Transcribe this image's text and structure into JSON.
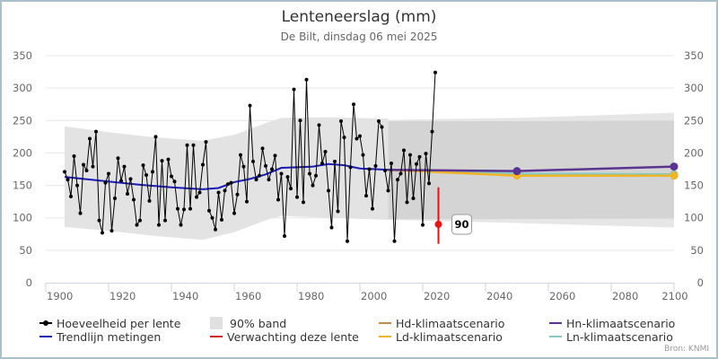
{
  "header": {
    "title": "Lenteneerslag (mm)",
    "subtitle": "De Bilt, dinsdag 06 mei 2025"
  },
  "source": "Bron: KNMI",
  "colors": {
    "observations": "#000000",
    "trend": "#1a1ab8",
    "band_hist": "#e3e3e3",
    "band_scen_outer": "#e6e6e6",
    "band_scen_inner": "#d4d4d4",
    "forecast": "#ee1111",
    "hd": "#d98f2a",
    "hn": "#5b3391",
    "ld": "#f0b429",
    "ln": "#88c9c0"
  },
  "legend": [
    {
      "label": "Hoeveelheid per lente",
      "symbol": "dot-line",
      "color": "#000000"
    },
    {
      "label": "90% band",
      "symbol": "box",
      "color": "#e3e3e3"
    },
    {
      "label": "Hd-klimaatscenario",
      "symbol": "line",
      "color": "#d98f2a"
    },
    {
      "label": "Hn-klimaatscenario",
      "symbol": "line",
      "color": "#5b3391"
    },
    {
      "label": "Trendlijn metingen",
      "symbol": "line",
      "color": "#1a1ab8"
    },
    {
      "label": "Verwachting deze lente",
      "symbol": "line",
      "color": "#ee1111"
    },
    {
      "label": "Ld-klimaatscenario",
      "symbol": "line",
      "color": "#f0b429"
    },
    {
      "label": "Ln-klimaatscenario",
      "symbol": "line",
      "color": "#88c9c0"
    }
  ],
  "chart_data": {
    "type": "line",
    "title": "Lenteneerslag (mm)",
    "subtitle": "De Bilt, dinsdag 06 mei 2025",
    "xlabel": "",
    "ylabel": "",
    "xlim": [
      1900,
      2100
    ],
    "ylim": [
      0,
      350
    ],
    "x_ticks": [
      "1900",
      "1920",
      "1940",
      "1960",
      "1980",
      "2000",
      "2020",
      "2040",
      "2060",
      "2080",
      "2100"
    ],
    "y_ticks": [
      "0",
      "50",
      "100",
      "150",
      "200",
      "250",
      "300",
      "350"
    ],
    "grid": true,
    "legend_position": "bottom",
    "observations": {
      "name": "Hoeveelheid per lente",
      "start_year": 1906,
      "values": [
        171,
        159,
        133,
        195,
        150,
        107,
        182,
        173,
        222,
        179,
        233,
        96,
        77,
        154,
        168,
        80,
        130,
        192,
        157,
        179,
        137,
        160,
        128,
        89,
        96,
        181,
        166,
        126,
        171,
        225,
        89,
        188,
        96,
        190,
        164,
        156,
        114,
        89,
        113,
        212,
        114,
        212,
        132,
        139,
        182,
        217,
        111,
        100,
        82,
        139,
        97,
        142,
        152,
        154,
        107,
        136,
        197,
        179,
        125,
        273,
        187,
        159,
        165,
        207,
        180,
        159,
        175,
        196,
        128,
        168,
        72,
        163,
        145,
        298,
        132,
        250,
        124,
        313,
        168,
        150,
        165,
        243,
        184,
        202,
        142,
        85,
        187,
        110,
        249,
        224,
        64,
        178,
        275,
        222,
        226,
        197,
        134,
        175,
        114,
        180,
        249,
        240,
        173,
        142,
        184,
        64,
        159,
        168,
        204,
        124,
        197,
        130,
        183,
        194,
        89,
        199,
        153,
        233,
        324
      ]
    },
    "trend": {
      "name": "Trendlijn metingen",
      "x": [
        1906,
        1920,
        1930,
        1940,
        1950,
        1955,
        1960,
        1965,
        1970,
        1975,
        1980,
        1985,
        1990,
        1995,
        2000,
        2005,
        2009
      ],
      "y": [
        163,
        156,
        151,
        147,
        144,
        146,
        155,
        160,
        167,
        177,
        178,
        179,
        183,
        181,
        176,
        175,
        174
      ]
    },
    "band_historic": {
      "name": "90% band",
      "x": [
        1906,
        1920,
        1935,
        1950,
        1960,
        1970,
        1975,
        1990,
        2009
      ],
      "upper": [
        241,
        232,
        224,
        219,
        228,
        246,
        254,
        255,
        253
      ],
      "lower": [
        86,
        80,
        72,
        66,
        78,
        96,
        103,
        100,
        97
      ]
    },
    "band_scenario": {
      "x": [
        2009,
        2050,
        2100
      ],
      "outer_upper": [
        251,
        254,
        262
      ],
      "outer_lower": [
        97,
        92,
        85
      ],
      "inner_upper": [
        249,
        249,
        250
      ],
      "inner_lower": [
        98,
        98,
        99
      ]
    },
    "forecast": {
      "name": "Verwachting deze lente",
      "x": 2025,
      "value": 90,
      "low": 60,
      "high": 147,
      "label": "90"
    },
    "scenarios": [
      {
        "name": "Hd-klimaatscenario",
        "x": [
          2009,
          2050,
          2100
        ],
        "y": [
          174,
          167,
          167
        ]
      },
      {
        "name": "Ln-klimaatscenario",
        "x": [
          2009,
          2050,
          2100
        ],
        "y": [
          174,
          168,
          167
        ]
      },
      {
        "name": "Ld-klimaatscenario",
        "x": [
          2009,
          2050,
          2100
        ],
        "y": [
          174,
          165,
          165
        ]
      },
      {
        "name": "Hn-klimaatscenario",
        "x": [
          2009,
          2050,
          2100
        ],
        "y": [
          174,
          172,
          179
        ]
      }
    ]
  }
}
